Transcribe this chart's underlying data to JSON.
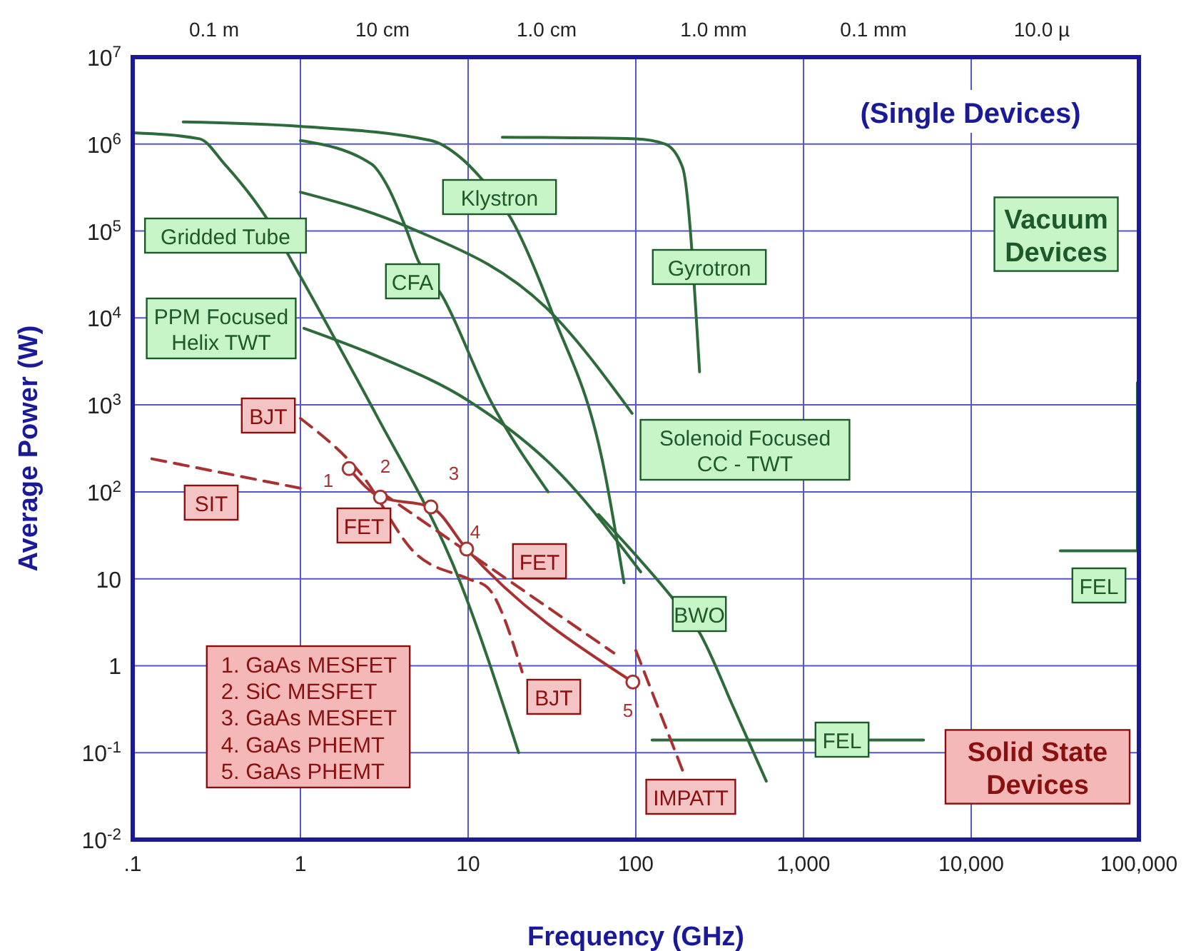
{
  "chart_data": {
    "type": "line",
    "xlabel": "Frequency (GHz)",
    "ylabel": "Average Power (W)",
    "log": "xy",
    "grid": true,
    "marker": "none",
    "xlim": [
      0.1,
      100000
    ],
    "xticks": [
      {
        "value": 0.1,
        "label": ".1"
      },
      1,
      10,
      100,
      {
        "value": 1000,
        "label": "1,000"
      },
      {
        "value": 10000,
        "label": "10,000"
      },
      {
        "value": 100000,
        "label": "100,000"
      }
    ],
    "ylim": [
      0.01,
      10000000
    ],
    "yticks": [
      {
        "value": 0.01,
        "label": "10$^{-2}$"
      },
      {
        "value": 0.1,
        "label": "10$^{-1}$"
      },
      1,
      10,
      {
        "value": 100,
        "label": "10$^{2}$"
      },
      {
        "value": 1000,
        "label": "10$^{3}$"
      },
      {
        "value": 10000,
        "label": "10$^{4}$"
      },
      {
        "value": 100000,
        "label": "10$^{5}$"
      },
      {
        "value": 1000000,
        "label": "10$^{6}$"
      },
      {
        "value": 10000000,
        "label": "10$^{7}$"
      }
    ],
    "series": [
      {
        "color": "#2e6b3a",
        "line_style": "solid",
        "x": [
          0.1,
          0.25,
          0.35,
          0.63,
          1,
          1.7,
          2.8,
          9,
          20
        ],
        "values": [
          1350000,
          1150000,
          600000,
          140000,
          30000,
          4700,
          800,
          9,
          0.1
        ]
      },
      {
        "color": "#2e6b3a",
        "line_style": "solid",
        "x": [
          0.2,
          1,
          6,
          9,
          12,
          18,
          32,
          65,
          85
        ],
        "values": [
          1800000,
          1600000,
          1100000,
          700000,
          400000,
          140000,
          11000,
          175,
          9
        ]
      },
      {
        "color": "#2e6b3a",
        "line_style": "solid",
        "x": [
          1,
          2.65,
          3.3,
          4.2,
          5,
          7,
          13.5,
          30
        ],
        "values": [
          1100000,
          590000,
          330000,
          115000,
          47000,
          18000,
          1150,
          100
        ]
      },
      {
        "color": "#2e6b3a",
        "line_style": "solid",
        "x": [
          1.05,
          3,
          9.8,
          34,
          107
        ],
        "values": [
          7600,
          3500,
          1150,
          175,
          12
        ]
      },
      {
        "color": "#2e6b3a",
        "line_style": "solid",
        "x": [
          1,
          4.2,
          32,
          95
        ],
        "values": [
          280000,
          115000,
          11000,
          800
        ]
      },
      {
        "color": "#2e6b3a",
        "line_style": "solid",
        "x": [
          16,
          100,
          150,
          190,
          240
        ],
        "values": [
          1200000,
          1150000,
          1000000,
          540000,
          2400
        ]
      },
      {
        "color": "#2e6b3a",
        "line_style": "solid",
        "x": [
          60,
          160,
          240,
          380,
          600
        ],
        "values": [
          55,
          6.5,
          2.4,
          0.34,
          0.047
        ]
      },
      {
        "color": "#2e6b3a",
        "line_style": "solid",
        "x": [
          125,
          5200
        ],
        "values": [
          0.14,
          0.14
        ]
      },
      {
        "color": "#2e6b3a",
        "line_style": "solid",
        "x": [
          34000,
          98000,
          98000
        ],
        "values": [
          21,
          21,
          1800
        ]
      },
      {
        "color": "#a83232",
        "line_style": "dashed",
        "x": [
          0.13,
          1
        ],
        "values": [
          240,
          110
        ]
      },
      {
        "color": "#a83232",
        "line_style": "dashed",
        "x": [
          1,
          2.3,
          4.8,
          10,
          13,
          21
        ],
        "values": [
          700,
          160,
          20,
          10,
          8,
          0.85
        ]
      },
      {
        "color": "#a83232",
        "line_style": "dashed",
        "x": [
          3,
          74
        ],
        "values": [
          100,
          1.4
        ]
      },
      {
        "color": "#a83232",
        "line_style": "solid",
        "marker": "circle",
        "x": [
          1.95,
          3,
          6,
          9.8,
          96
        ],
        "values": [
          185,
          87,
          67,
          22,
          0.65
        ]
      },
      {
        "color": "#a83232",
        "line_style": "dashed",
        "x": [
          100,
          195
        ],
        "values": [
          1.5,
          0.055
        ]
      }
    ],
    "annotations": [
      "(Single Devices)",
      "Vacuum\nDevices",
      "Solid State\nDevices",
      "1.  GaAs MESFET\n2.  SiC MESFET\n3.  GaAs MESFET\n4.  GaAs PHEMT\n5.  GaAs PHEMT",
      "Gridded Tube",
      "Klystron",
      "CFA",
      "PPM Focused\nHelix TWT",
      "Gyrotron",
      "Solenoid Focused\nCC - TWT",
      "BWO",
      "FEL",
      "FEL",
      "BJT",
      "SIT",
      "FET",
      "FET",
      "BJT",
      "IMPATT",
      "1",
      "2",
      "3",
      "4",
      "5",
      "0.1 m",
      "10 cm",
      "1.0 cm",
      "1.0 mm",
      "0.1 mm",
      "10.0 µ"
    ]
  }
}
